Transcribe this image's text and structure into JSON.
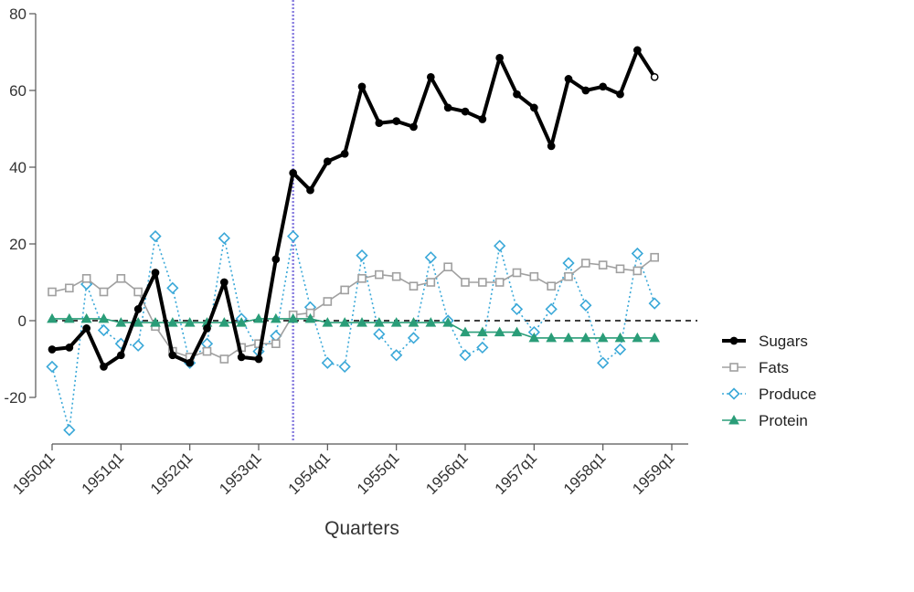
{
  "chart_data": {
    "type": "line",
    "xlabel": "Quarters",
    "ylabel": "",
    "ylim": [
      -30,
      80
    ],
    "yticks": [
      -20,
      0,
      20,
      40,
      60,
      80
    ],
    "x_tick_labels": [
      "1950q1",
      "1951q1",
      "1952q1",
      "1953q1",
      "1954q1",
      "1955q1",
      "1956q1",
      "1957q1",
      "1958q1",
      "1959q1"
    ],
    "x_start": "1950q1",
    "x_end": "1959q1",
    "vline": {
      "quarter": "1953q3",
      "color": "#8a7fe0"
    },
    "hline": {
      "y": 0,
      "style": "dashed"
    },
    "legend_position": "right",
    "quarters": [
      "1950q1",
      "1950q2",
      "1950q3",
      "1950q4",
      "1951q1",
      "1951q2",
      "1951q3",
      "1951q4",
      "1952q1",
      "1952q2",
      "1952q3",
      "1952q4",
      "1953q1",
      "1953q2",
      "1953q3",
      "1953q4",
      "1954q1",
      "1954q2",
      "1954q3",
      "1954q4",
      "1955q1",
      "1955q2",
      "1955q3",
      "1955q4",
      "1956q1",
      "1956q2",
      "1956q3",
      "1956q4",
      "1957q1",
      "1957q2",
      "1957q3",
      "1957q4",
      "1958q1",
      "1958q2",
      "1958q3",
      "1958q4"
    ],
    "series": [
      {
        "name": "Sugars",
        "color": "#000000",
        "line": "solid-thick",
        "marker": "filled-circle",
        "values": [
          -7.5,
          -7,
          -2,
          -12,
          -9,
          3,
          12.5,
          -9,
          -11,
          -2,
          10,
          -9.5,
          -10,
          16,
          38.5,
          34,
          41.5,
          43.5,
          61,
          51.5,
          52,
          50.5,
          63.5,
          55.5,
          54.5,
          52.5,
          68.5,
          59,
          55.5,
          45.5,
          63,
          60,
          61,
          59,
          70.5,
          63.5
        ]
      },
      {
        "name": "Fats",
        "color": "#a0a0a0",
        "line": "solid",
        "marker": "open-square",
        "values": [
          7.5,
          8.5,
          11,
          7.5,
          11,
          7.5,
          -1.5,
          -8,
          -9.5,
          -8,
          -10,
          -7,
          -6,
          -6,
          1.5,
          2,
          5,
          8,
          11,
          12,
          11.5,
          9,
          10,
          14,
          10,
          10,
          10,
          12.5,
          11.5,
          9,
          11.5,
          15,
          14.5,
          13.5,
          13,
          16.5
        ]
      },
      {
        "name": "Produce",
        "color": "#3aa8d8",
        "line": "dotted",
        "marker": "open-diamond",
        "values": [
          -12,
          -28.5,
          9.5,
          -2.5,
          -6,
          -6.5,
          22,
          8.5,
          -11,
          -6,
          21.5,
          0.5,
          -8,
          -4,
          22,
          3.5,
          -11,
          -12,
          17,
          -3.5,
          -9,
          -4.5,
          16.5,
          0,
          -9,
          -7,
          19.5,
          3,
          -3,
          3,
          15,
          4,
          -11,
          -7.5,
          17.5,
          4.5
        ]
      },
      {
        "name": "Protein",
        "color": "#2a9d78",
        "line": "solid",
        "marker": "filled-triangle",
        "values": [
          0.5,
          0.5,
          0.5,
          0.5,
          -0.5,
          -0.5,
          -0.5,
          -0.5,
          -0.5,
          -0.5,
          -0.5,
          -0.5,
          0.5,
          0.5,
          0.5,
          0.5,
          -0.5,
          -0.5,
          -0.5,
          -0.5,
          -0.5,
          -0.5,
          -0.5,
          -0.5,
          -3,
          -3,
          -3,
          -3,
          -4.5,
          -4.5,
          -4.5,
          -4.5,
          -4.5,
          -4.5,
          -4.5,
          -4.5
        ]
      }
    ]
  }
}
